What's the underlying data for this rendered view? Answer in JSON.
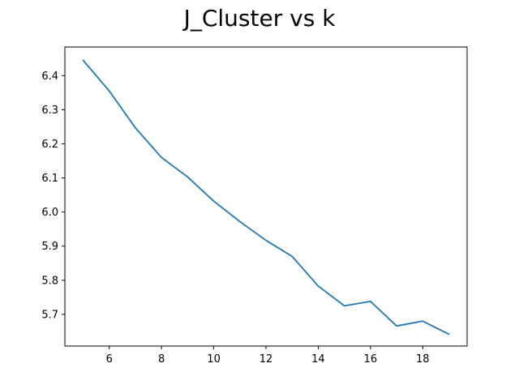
{
  "chart_data": {
    "type": "line",
    "title": "J_Cluster vs k",
    "xlabel": "",
    "ylabel": "",
    "xlim": [
      4.3,
      19.7
    ],
    "ylim": [
      5.607,
      6.484
    ],
    "xticks": [
      6,
      8,
      10,
      12,
      14,
      16,
      18
    ],
    "yticks": [
      5.7,
      5.8,
      5.9,
      6.0,
      6.1,
      6.2,
      6.3,
      6.4
    ],
    "ytick_labels": [
      "5.7",
      "5.8",
      "5.9",
      "6.0",
      "6.1",
      "6.2",
      "6.3",
      "6.4"
    ],
    "grid": false,
    "legend": "none",
    "series": [
      {
        "color": "#1f77b4",
        "x": [
          5,
          6,
          7,
          8,
          9,
          10,
          11,
          12,
          13,
          14,
          15,
          16,
          17,
          18,
          19
        ],
        "y": [
          6.445,
          6.355,
          6.247,
          6.16,
          6.103,
          6.032,
          5.972,
          5.917,
          5.87,
          5.783,
          5.725,
          5.738,
          5.666,
          5.68,
          5.642
        ]
      }
    ]
  }
}
